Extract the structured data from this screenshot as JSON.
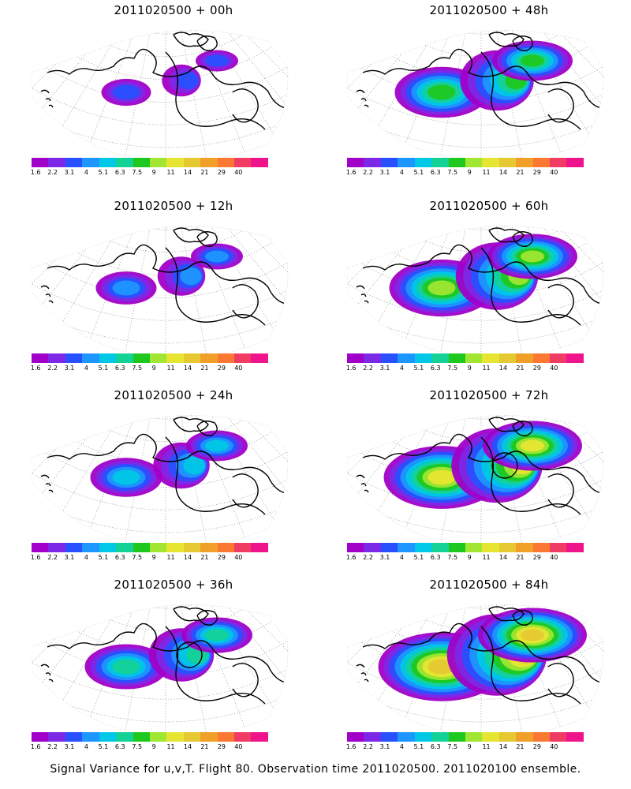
{
  "panels": [
    {
      "title": "2011020500 + 00h",
      "level": 0,
      "circle": false
    },
    {
      "title": "2011020500 + 48h",
      "level": 4,
      "circle": false
    },
    {
      "title": "2011020500 + 12h",
      "level": 1,
      "circle": false
    },
    {
      "title": "2011020500 + 60h",
      "level": 5,
      "circle": false
    },
    {
      "title": "2011020500 + 24h",
      "level": 2,
      "circle": false
    },
    {
      "title": "2011020500 + 72h",
      "level": 6,
      "circle": true
    },
    {
      "title": "2011020500 + 36h",
      "level": 3,
      "circle": true
    },
    {
      "title": "2011020500 + 84h",
      "level": 7,
      "circle": false
    }
  ],
  "colorbar": {
    "colors": [
      "#a000c8",
      "#7d28e6",
      "#2850ff",
      "#1e96ff",
      "#00c8e6",
      "#14d296",
      "#1ec81e",
      "#a0e632",
      "#e6e632",
      "#e6c832",
      "#f0a028",
      "#fa7832",
      "#f03c64",
      "#f0148c"
    ],
    "ticks": [
      "1.6",
      "2.2",
      "3.1",
      "4",
      "5.1",
      "6.3",
      "7.5",
      "9",
      "11",
      "14",
      "21",
      "29",
      "40"
    ]
  },
  "footer": "Signal Variance for u,v,T. Flight 80. Observation time 2011020500. 2011020100 ensemble."
}
